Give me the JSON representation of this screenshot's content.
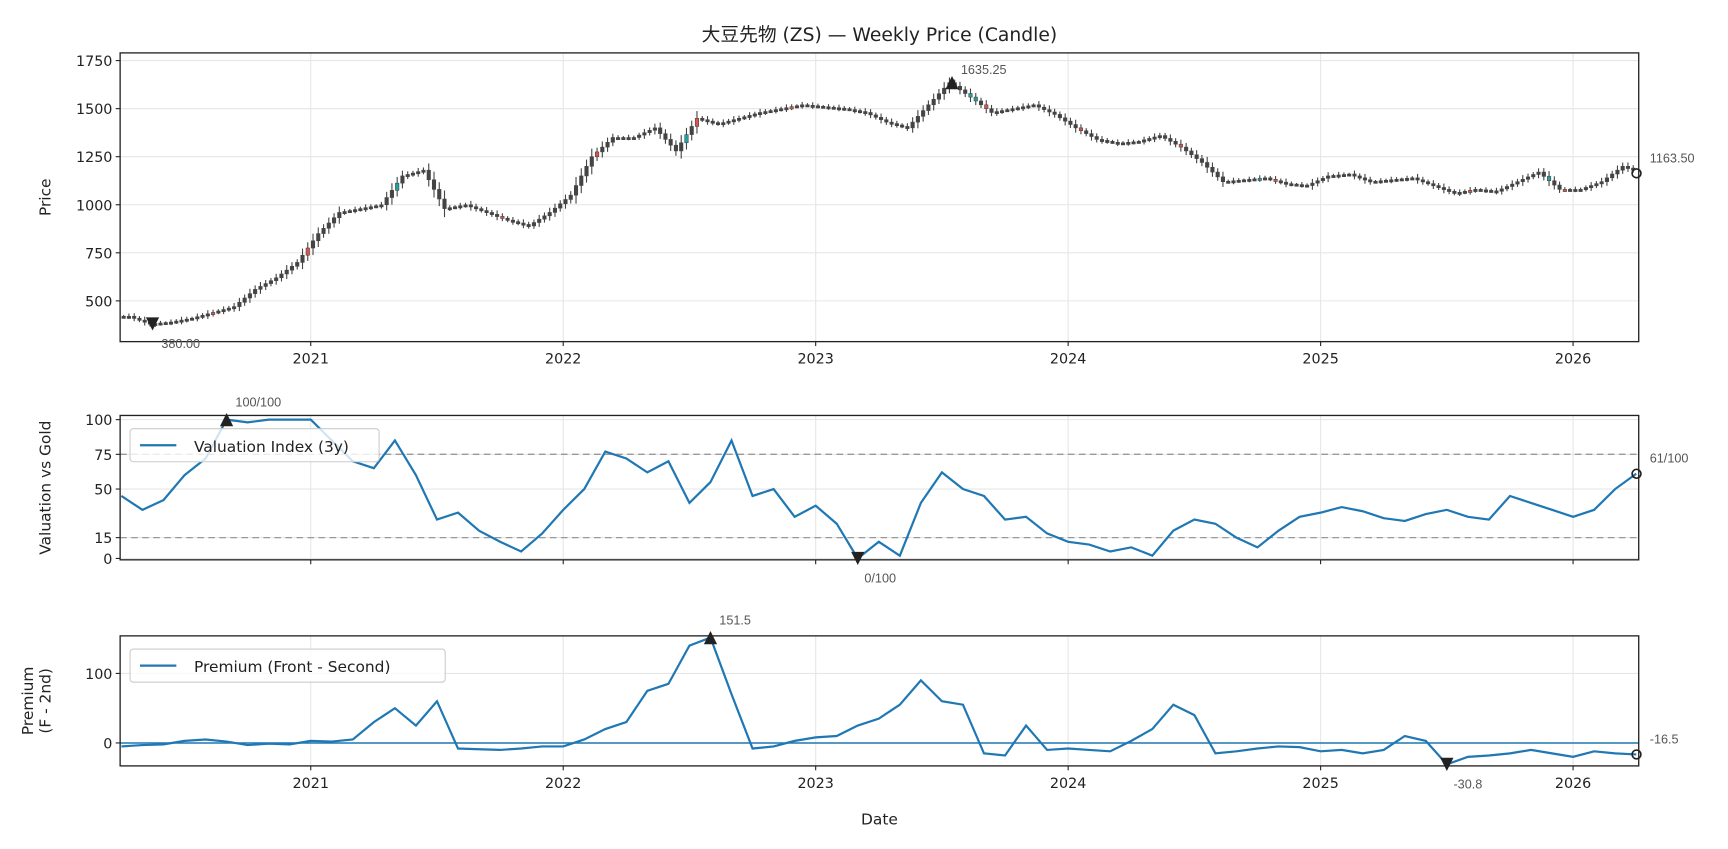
{
  "chart_data": [
    {
      "type": "candlestick",
      "title": "大豆先物 (ZS) — Weekly Price (Candle)",
      "ylabel": "Price",
      "xlabel": "",
      "ylim": [
        288,
        1790
      ],
      "yticks": [
        500,
        750,
        1000,
        1250,
        1500,
        1750
      ],
      "xticks": [
        "2021",
        "2022",
        "2023",
        "2024",
        "2025",
        "2026"
      ],
      "grid": true,
      "colors": {
        "candle": "#444444",
        "down_accent": "#d9534f",
        "up_accent": "#20a0a0"
      },
      "dates": [
        "2020-04",
        "2020-05",
        "2020-06",
        "2020-07",
        "2020-08",
        "2020-09",
        "2020-10",
        "2020-11",
        "2020-12",
        "2021-01",
        "2021-02",
        "2021-03",
        "2021-04",
        "2021-05",
        "2021-06",
        "2021-07",
        "2021-08",
        "2021-09",
        "2021-10",
        "2021-11",
        "2021-12",
        "2022-01",
        "2022-02",
        "2022-03",
        "2022-04",
        "2022-05",
        "2022-06",
        "2022-07",
        "2022-08",
        "2022-09",
        "2022-10",
        "2022-11",
        "2022-12",
        "2023-01",
        "2023-02",
        "2023-03",
        "2023-04",
        "2023-05",
        "2023-06",
        "2023-07",
        "2023-08",
        "2023-09",
        "2023-10",
        "2023-11",
        "2023-12",
        "2024-01",
        "2024-02",
        "2024-03",
        "2024-04",
        "2024-05",
        "2024-06",
        "2024-07",
        "2024-08",
        "2024-09",
        "2024-10",
        "2024-11",
        "2024-12",
        "2025-01",
        "2025-02",
        "2025-03",
        "2025-04",
        "2025-05",
        "2025-06",
        "2025-07",
        "2025-08",
        "2025-09",
        "2025-10",
        "2025-11",
        "2025-12",
        "2026-01",
        "2026-02",
        "2026-03",
        "2026-04"
      ],
      "close": [
        420,
        380,
        390,
        410,
        440,
        470,
        560,
        620,
        700,
        850,
        960,
        980,
        1000,
        1150,
        1180,
        980,
        1000,
        960,
        920,
        890,
        960,
        1050,
        1250,
        1350,
        1350,
        1400,
        1280,
        1450,
        1420,
        1450,
        1480,
        1500,
        1520,
        1510,
        1500,
        1480,
        1430,
        1400,
        1520,
        1635.25,
        1560,
        1480,
        1500,
        1520,
        1470,
        1400,
        1340,
        1320,
        1330,
        1360,
        1300,
        1220,
        1120,
        1130,
        1140,
        1110,
        1100,
        1150,
        1160,
        1120,
        1130,
        1140,
        1100,
        1060,
        1080,
        1070,
        1120,
        1170,
        1080,
        1080,
        1120,
        1200,
        1163.5
      ],
      "annotations": {
        "max_label": "1635.25",
        "min_label": "380.00",
        "last_label": "1163.50"
      }
    },
    {
      "type": "line",
      "ylabel": "Valuation vs Gold",
      "ylim": [
        -1,
        103
      ],
      "yticks": [
        0,
        15,
        50,
        75,
        100
      ],
      "hlines": [
        15,
        75
      ],
      "legend": "top-left",
      "color": "#1f77b4",
      "series": [
        {
          "name": "Valuation Index (3y)",
          "values": [
            45,
            35,
            42,
            60,
            72,
            100,
            98,
            100,
            100,
            100,
            85,
            70,
            65,
            85,
            60,
            28,
            33,
            20,
            12,
            5,
            18,
            35,
            50,
            77,
            72,
            62,
            70,
            40,
            55,
            85,
            45,
            50,
            30,
            38,
            25,
            0,
            12,
            2,
            40,
            62,
            50,
            45,
            28,
            30,
            18,
            12,
            10,
            5,
            8,
            2,
            20,
            28,
            25,
            15,
            8,
            20,
            30,
            33,
            37,
            34,
            29,
            27,
            32,
            35,
            30,
            28,
            45,
            40,
            35,
            30,
            35,
            50,
            61
          ]
        }
      ],
      "annotations": {
        "max_label": "100/100",
        "min_label": "0/100",
        "last_label": "61/100"
      }
    },
    {
      "type": "line",
      "ylabel": "Premium\n(F - 2nd)",
      "xlabel": "Date",
      "ylim": [
        -33,
        154
      ],
      "yticks": [
        0,
        100
      ],
      "hlines": [
        0
      ],
      "xticks": [
        "2021",
        "2022",
        "2023",
        "2024",
        "2025",
        "2026"
      ],
      "legend": "top-left",
      "color": "#1f77b4",
      "series": [
        {
          "name": "Premium (Front - Second)",
          "values": [
            -5,
            -3,
            -2,
            3,
            5,
            2,
            -3,
            -1,
            -2,
            3,
            2,
            5,
            30,
            50,
            25,
            60,
            -8,
            -9,
            -10,
            -8,
            -5,
            -5,
            5,
            20,
            30,
            75,
            85,
            140,
            151.5,
            70,
            -8,
            -5,
            3,
            8,
            10,
            25,
            35,
            55,
            90,
            60,
            55,
            -15,
            -18,
            25,
            -10,
            -8,
            -10,
            -12,
            3,
            20,
            55,
            40,
            -15,
            -12,
            -8,
            -5,
            -6,
            -12,
            -10,
            -15,
            -10,
            10,
            3,
            -30.8,
            -20,
            -18,
            -15,
            -10,
            -15,
            -20,
            -12,
            -15,
            -16.5
          ]
        }
      ],
      "annotations": {
        "max_label": "151.5",
        "min_label": "-30.8",
        "last_label": "-16.5"
      }
    }
  ]
}
